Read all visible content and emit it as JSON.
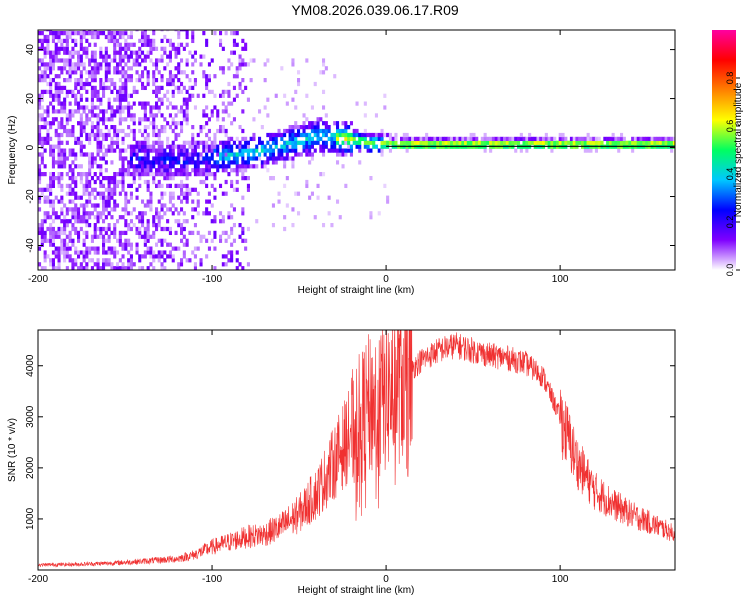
{
  "title": "YM08.2026.039.06.17.R09",
  "colors": {
    "snr_line": "#f03030",
    "colorbar": [
      "#ffffff",
      "#7f00ff",
      "#0000ff",
      "#00c8ff",
      "#00ff60",
      "#ffff00",
      "#ff8000",
      "#ff0000",
      "#ff00a0"
    ],
    "ridge_line": "#000000"
  },
  "chart_data": [
    {
      "type": "heatmap",
      "name": "spectrogram",
      "xlabel": "Height of straight line (km)",
      "ylabel": "Frequency (Hz)",
      "xlim": [
        -200,
        166
      ],
      "ylim": [
        -50,
        48
      ],
      "x_ticks": [
        -200,
        -100,
        0,
        100
      ],
      "y_ticks": [
        -40,
        -20,
        0,
        20,
        40
      ],
      "colorbar": {
        "label": "Normalized spectral amplitude",
        "range": [
          0,
          1
        ],
        "ticks": [
          0.0,
          0.2,
          0.4,
          0.6,
          0.8
        ]
      },
      "ridge": {
        "description": "dominant frequency ridge",
        "points": [
          [
            -150,
            -5
          ],
          [
            -120,
            -6
          ],
          [
            -100,
            -5
          ],
          [
            -80,
            -3
          ],
          [
            -60,
            0
          ],
          [
            -40,
            4
          ],
          [
            -25,
            3
          ],
          [
            -10,
            1
          ],
          [
            0,
            0.5
          ],
          [
            20,
            0.5
          ],
          [
            60,
            0.5
          ],
          [
            100,
            0.5
          ],
          [
            140,
            0.5
          ],
          [
            166,
            0.5
          ]
        ]
      },
      "noise_region_x": [
        -200,
        -80
      ],
      "grid": false,
      "legend": "colorbar-right"
    },
    {
      "type": "line",
      "name": "snr",
      "xlabel": "Height of straight line (km)",
      "ylabel": "SNR (10 * v/v)",
      "xlim": [
        -200,
        166
      ],
      "ylim": [
        0,
        4700
      ],
      "x_ticks": [
        -200,
        -100,
        0,
        100
      ],
      "y_ticks": [
        1000,
        2000,
        3000,
        4000
      ],
      "grid": false,
      "series": [
        {
          "envelope": [
            [
              -200,
              100
            ],
            [
              -180,
              110
            ],
            [
              -160,
              130
            ],
            [
              -140,
              170
            ],
            [
              -120,
              220
            ],
            [
              -110,
              300
            ],
            [
              -100,
              450
            ],
            [
              -90,
              550
            ],
            [
              -80,
              650
            ],
            [
              -70,
              700
            ],
            [
              -60,
              850
            ],
            [
              -50,
              1100
            ],
            [
              -40,
              1500
            ],
            [
              -30,
              2100
            ],
            [
              -20,
              2700
            ],
            [
              -10,
              3200
            ],
            [
              0,
              3400
            ],
            [
              10,
              3800
            ],
            [
              20,
              4100
            ],
            [
              30,
              4300
            ],
            [
              40,
              4400
            ],
            [
              50,
              4300
            ],
            [
              60,
              4200
            ],
            [
              70,
              4150
            ],
            [
              80,
              4050
            ],
            [
              90,
              3800
            ],
            [
              100,
              3000
            ],
            [
              110,
              2100
            ],
            [
              120,
              1550
            ],
            [
              130,
              1300
            ],
            [
              140,
              1100
            ],
            [
              150,
              950
            ],
            [
              160,
              800
            ],
            [
              166,
              700
            ]
          ]
        }
      ]
    }
  ]
}
